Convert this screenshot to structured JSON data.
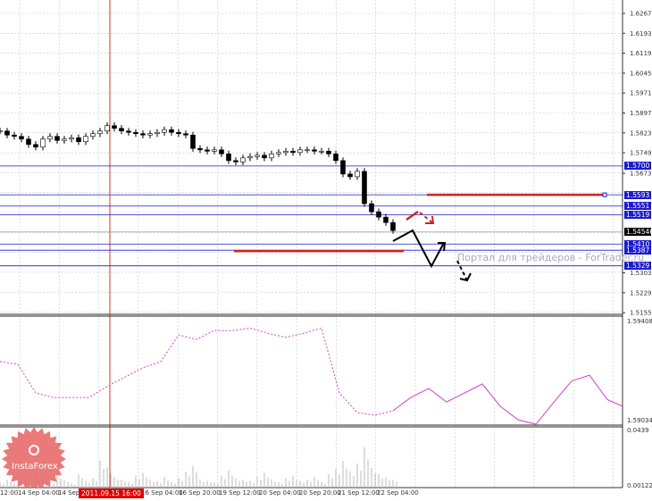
{
  "chart_data": {
    "type": "candlestick",
    "price_axis": {
      "ticks": [
        "1.62670",
        "1.61930",
        "1.61190",
        "1.60450",
        "1.59710",
        "1.58970",
        "1.58230",
        "1.57490",
        "1.56730",
        "1.53030",
        "1.52290",
        "1.51550"
      ],
      "range": [
        1.5155,
        1.6267
      ]
    },
    "x_ticks": [
      "12:00",
      "14 Sep 04:00",
      "14 Sep",
      "16 Sep 04:00",
      "16 Sep 20:00",
      "19 Sep 12:00",
      "20 Sep 04:00",
      "20 Sep 20:00",
      "21 Sep 12:00",
      "22 Sep 04:00"
    ],
    "cursor_time": "2011.09.15 16:00",
    "closes": [
      1.583,
      1.5815,
      1.581,
      1.58,
      1.578,
      1.577,
      1.58,
      1.581,
      1.5795,
      1.58,
      1.5805,
      1.579,
      1.581,
      1.582,
      1.583,
      1.585,
      1.584,
      1.583,
      1.5825,
      1.582,
      1.5815,
      1.582,
      1.5825,
      1.5835,
      1.5825,
      1.582,
      1.5815,
      1.5765,
      1.576,
      1.5755,
      1.576,
      1.5745,
      1.572,
      1.5715,
      1.573,
      1.5735,
      1.574,
      1.573,
      1.5745,
      1.575,
      1.5755,
      1.575,
      1.576,
      1.576,
      1.5755,
      1.5755,
      1.5745,
      1.572,
      1.567,
      1.566,
      1.568,
      1.556,
      1.553,
      1.551,
      1.549,
      1.546
    ],
    "levels": [
      {
        "label": "1.5700",
        "value": 1.57
      },
      {
        "label": "1.5593",
        "value": 1.5593
      },
      {
        "label": "1.5551",
        "value": 1.5551
      },
      {
        "label": "1.5519",
        "value": 1.5519
      },
      {
        "label": "1.5410",
        "value": 1.541
      },
      {
        "label": "1.5387",
        "value": 1.5387
      },
      {
        "label": "1.5329",
        "value": 1.5329
      }
    ],
    "current_price": {
      "label": "1.54546",
      "value": 1.54546
    },
    "red_levels": [
      1.5593,
      1.5384
    ],
    "indicator": {
      "axis_max": "1.59408",
      "axis_min": "1.59034",
      "range": [
        1.59034,
        1.59408
      ],
      "values": [
        1.59253,
        1.59243,
        1.59135,
        1.59118,
        1.59118,
        1.59118,
        1.5916,
        1.59195,
        1.5923,
        1.59253,
        1.59354,
        1.59337,
        1.59371,
        1.5937,
        1.5938,
        1.5936,
        1.59345,
        1.5936,
        1.5938,
        1.59135,
        1.59061,
        1.59051,
        1.59068,
        1.59118,
        1.59152,
        1.59101,
        1.59135,
        1.59169,
        1.59085,
        1.59034,
        1.59017,
        1.591,
        1.5918,
        1.59202,
        1.5911,
        1.59085
      ],
      "forecast_from_index": 22,
      "color": "#cc44cc"
    },
    "volume": {
      "axis_max": "0.0439",
      "axis_min": "0.00122",
      "range": [
        0,
        0.0439
      ],
      "values": [
        0.004,
        0.006,
        0.003,
        0.008,
        0.005,
        0.012,
        0.007,
        0.004,
        0.009,
        0.006,
        0.003,
        0.01,
        0.005,
        0.007,
        0.02,
        0.015,
        0.008,
        0.006,
        0.004,
        0.009,
        0.011,
        0.006,
        0.005,
        0.008,
        0.004,
        0.007,
        0.012,
        0.016,
        0.006,
        0.005,
        0.004,
        0.009,
        0.013,
        0.007,
        0.006,
        0.005,
        0.008,
        0.011,
        0.006,
        0.004,
        0.007,
        0.009,
        0.005,
        0.006,
        0.008,
        0.004,
        0.01,
        0.014,
        0.02,
        0.012,
        0.018,
        0.03,
        0.015,
        0.01,
        0.008,
        0.006
      ]
    },
    "colors": {
      "level": "#1a1acc",
      "red": "#cc2222",
      "candle": "#000000",
      "grid": "#c8c8c8"
    }
  },
  "watermark": "Портал для трейдеров - ForTrader.ru",
  "logo": "InstaForex"
}
